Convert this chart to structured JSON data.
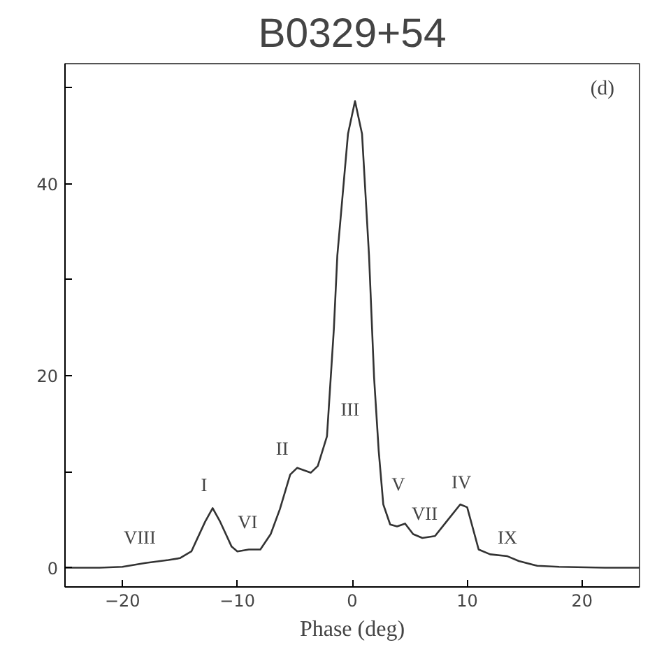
{
  "chart_data": {
    "type": "line",
    "title": "B0329+54",
    "xlabel": "Phase (deg)",
    "x": [
      -25,
      -22,
      -20,
      -18,
      -16,
      -15,
      -14,
      -13.5,
      -12.8,
      -12.15,
      -11.5,
      -10.5,
      -10,
      -9,
      -8,
      -7.1,
      -6.3,
      -5.4,
      -4.8,
      -3.6,
      -3.0,
      -2.2,
      -1.6,
      -1.3,
      -0.37,
      0.24,
      0.85,
      1.46,
      1.9,
      2.3,
      2.7,
      3.3,
      3.9,
      4.6,
      5.3,
      6.1,
      7.2,
      8.2,
      9.4,
      10.0,
      11.0,
      12.0,
      13.5,
      14.5,
      16.1,
      18,
      22,
      25
    ],
    "series": [
      {
        "color": "#333333",
        "values": [
          0,
          0,
          0.1,
          0.5,
          0.8,
          1,
          1.7,
          3.0,
          4.8,
          6.2,
          4.8,
          2.2,
          1.7,
          1.9,
          1.9,
          3.5,
          6.1,
          9.7,
          10.4,
          9.9,
          10.6,
          13.7,
          24.9,
          32.5,
          45.2,
          48.6,
          45.2,
          32.5,
          19.8,
          12.2,
          6.6,
          4.5,
          4.3,
          4.6,
          3.5,
          3.1,
          3.3,
          4.8,
          6.6,
          6.3,
          1.9,
          1.4,
          1.2,
          0.7,
          0.2,
          0.1,
          0,
          0
        ]
      }
    ],
    "xlim": [
      -25,
      25
    ],
    "ylim": [
      -2,
      52.5
    ],
    "xticks": [
      -20,
      -10,
      0,
      10,
      20
    ],
    "yticks": [
      0,
      {
        "value": 10,
        "label": null
      },
      20,
      {
        "value": 30,
        "label": null
      },
      40,
      {
        "value": 50,
        "label": null
      }
    ],
    "grid": false,
    "marker": "none",
    "line_style": "solid",
    "annotations": [
      "VIII",
      "I",
      "VI",
      "II",
      "III",
      "V",
      "VII",
      "IV",
      "IX",
      "(d)"
    ]
  }
}
